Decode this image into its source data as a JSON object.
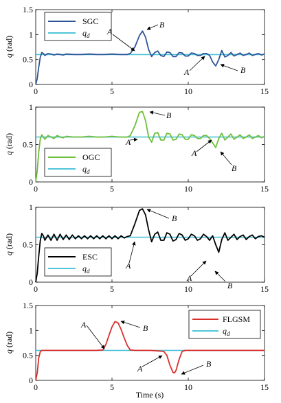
{
  "chart_data": [
    {
      "type": "line",
      "xlabel": "",
      "ylabel_main": "q",
      "ylabel_unit": "(rad)",
      "xlim": [
        0,
        15
      ],
      "ylim": [
        0,
        1.5
      ],
      "xticks": [
        "0",
        "5",
        "10",
        "15"
      ],
      "yticks": [
        "0",
        "0.5",
        "1",
        "1.5"
      ],
      "legend_position": "top-left",
      "series": [
        {
          "name": "SGC",
          "color": "#2f5597",
          "x": [
            0,
            0.1,
            0.2,
            0.3,
            0.4,
            0.5,
            0.6,
            0.7,
            0.8,
            1,
            1.2,
            1.4,
            1.6,
            1.8,
            2,
            2.5,
            3,
            3.5,
            4,
            4.5,
            5,
            5.5,
            6,
            6.2,
            6.5,
            6.8,
            7,
            7.2,
            7.4,
            7.6,
            7.8,
            8,
            8.2,
            8.4,
            8.6,
            8.8,
            9,
            9.2,
            9.4,
            9.6,
            9.8,
            10,
            10.2,
            10.4,
            10.6,
            10.8,
            11,
            11.2,
            11.4,
            11.6,
            11.8,
            12,
            12.2,
            12.4,
            12.6,
            12.8,
            13,
            13.2,
            13.4,
            13.6,
            13.8,
            14,
            14.2,
            14.4,
            14.6,
            14.8,
            15
          ],
          "y": [
            0,
            0.12,
            0.35,
            0.55,
            0.64,
            0.62,
            0.58,
            0.6,
            0.62,
            0.61,
            0.59,
            0.61,
            0.6,
            0.59,
            0.61,
            0.6,
            0.6,
            0.61,
            0.6,
            0.6,
            0.61,
            0.6,
            0.6,
            0.62,
            0.75,
            0.98,
            1.07,
            0.95,
            0.7,
            0.56,
            0.64,
            0.67,
            0.58,
            0.56,
            0.65,
            0.64,
            0.56,
            0.56,
            0.64,
            0.63,
            0.57,
            0.57,
            0.63,
            0.62,
            0.58,
            0.58,
            0.62,
            0.62,
            0.58,
            0.45,
            0.37,
            0.5,
            0.68,
            0.55,
            0.58,
            0.64,
            0.57,
            0.6,
            0.63,
            0.58,
            0.6,
            0.63,
            0.58,
            0.6,
            0.62,
            0.59,
            0.61
          ]
        },
        {
          "name": "q_d",
          "color": "#4fc4d9",
          "x": [
            0,
            15
          ],
          "y": [
            0.6,
            0.6
          ]
        }
      ],
      "legend": [
        {
          "label_main": "SGC",
          "label_sub": "",
          "color": "#2f5597"
        },
        {
          "label_main": "q",
          "label_sub": "d",
          "color": "#4fc4d9"
        }
      ],
      "annotations": [
        "A",
        "B",
        "A",
        "B"
      ]
    },
    {
      "type": "line",
      "xlabel": "",
      "ylabel_main": "q",
      "ylabel_unit": "(rad)",
      "xlim": [
        0,
        15
      ],
      "ylim": [
        0,
        1
      ],
      "xticks": [
        "0",
        "5",
        "10",
        "15"
      ],
      "yticks": [
        "0",
        "0.5",
        "1"
      ],
      "legend_position": "bottom-left",
      "series": [
        {
          "name": "OGC",
          "color": "#6dbf3b",
          "x": [
            0,
            0.1,
            0.2,
            0.3,
            0.4,
            0.5,
            0.6,
            0.8,
            1,
            1.2,
            1.4,
            1.6,
            1.8,
            2,
            2.5,
            3,
            3.5,
            4,
            4.5,
            5,
            5.5,
            6,
            6.2,
            6.5,
            6.8,
            7,
            7.2,
            7.4,
            7.6,
            7.8,
            8,
            8.2,
            8.4,
            8.6,
            8.8,
            9,
            9.2,
            9.4,
            9.6,
            9.8,
            10,
            10.2,
            10.4,
            10.6,
            10.8,
            11,
            11.2,
            11.4,
            11.6,
            11.8,
            12,
            12.2,
            12.4,
            12.6,
            12.8,
            13,
            13.2,
            13.4,
            13.6,
            13.8,
            14,
            14.2,
            14.4,
            14.6,
            14.8,
            15
          ],
          "y": [
            0,
            0.15,
            0.4,
            0.58,
            0.63,
            0.6,
            0.57,
            0.62,
            0.6,
            0.58,
            0.62,
            0.6,
            0.59,
            0.61,
            0.6,
            0.6,
            0.61,
            0.6,
            0.6,
            0.61,
            0.6,
            0.6,
            0.62,
            0.75,
            0.93,
            0.94,
            0.82,
            0.6,
            0.53,
            0.65,
            0.66,
            0.56,
            0.56,
            0.65,
            0.64,
            0.56,
            0.57,
            0.64,
            0.63,
            0.57,
            0.57,
            0.63,
            0.62,
            0.58,
            0.58,
            0.62,
            0.62,
            0.58,
            0.52,
            0.46,
            0.58,
            0.65,
            0.56,
            0.6,
            0.64,
            0.57,
            0.6,
            0.63,
            0.58,
            0.6,
            0.63,
            0.58,
            0.6,
            0.62,
            0.59,
            0.61
          ]
        },
        {
          "name": "q_d",
          "color": "#4fc4d9",
          "x": [
            0,
            15
          ],
          "y": [
            0.6,
            0.6
          ]
        }
      ],
      "legend": [
        {
          "label_main": "OGC",
          "label_sub": "",
          "color": "#6dbf3b"
        },
        {
          "label_main": "q",
          "label_sub": "d",
          "color": "#4fc4d9"
        }
      ],
      "annotations": [
        "A",
        "B",
        "A",
        "B"
      ]
    },
    {
      "type": "line",
      "xlabel": "",
      "ylabel_main": "q",
      "ylabel_unit": "(rad)",
      "xlim": [
        0,
        15
      ],
      "ylim": [
        0,
        1
      ],
      "xticks": [
        "0",
        "5",
        "10",
        "15"
      ],
      "yticks": [
        "0",
        "0.5",
        "1"
      ],
      "legend_position": "bottom-left",
      "series": [
        {
          "name": "ESC",
          "color": "#000000",
          "x": [
            0,
            0.1,
            0.2,
            0.3,
            0.4,
            0.5,
            0.6,
            0.8,
            1,
            1.2,
            1.4,
            1.6,
            1.8,
            2,
            2.2,
            2.4,
            2.6,
            2.8,
            3,
            3.2,
            3.4,
            3.6,
            3.8,
            4,
            4.2,
            4.4,
            4.6,
            4.8,
            5,
            5.2,
            5.4,
            5.6,
            5.8,
            6,
            6.2,
            6.5,
            6.8,
            7,
            7.2,
            7.4,
            7.6,
            7.8,
            8,
            8.2,
            8.4,
            8.6,
            8.8,
            9,
            9.2,
            9.4,
            9.6,
            9.8,
            10,
            10.2,
            10.4,
            10.6,
            10.8,
            11,
            11.2,
            11.4,
            11.6,
            11.8,
            12,
            12.2,
            12.4,
            12.6,
            12.8,
            13,
            13.2,
            13.4,
            13.6,
            13.8,
            14,
            14.2,
            14.4,
            14.6,
            14.8,
            15
          ],
          "y": [
            0,
            0.12,
            0.35,
            0.56,
            0.65,
            0.62,
            0.56,
            0.63,
            0.56,
            0.64,
            0.56,
            0.64,
            0.57,
            0.63,
            0.57,
            0.63,
            0.58,
            0.62,
            0.58,
            0.62,
            0.58,
            0.62,
            0.58,
            0.62,
            0.58,
            0.62,
            0.58,
            0.62,
            0.58,
            0.62,
            0.58,
            0.62,
            0.59,
            0.61,
            0.62,
            0.78,
            0.96,
            0.98,
            0.9,
            0.7,
            0.54,
            0.64,
            0.67,
            0.56,
            0.56,
            0.66,
            0.64,
            0.55,
            0.57,
            0.65,
            0.63,
            0.56,
            0.58,
            0.64,
            0.62,
            0.56,
            0.58,
            0.64,
            0.61,
            0.56,
            0.62,
            0.5,
            0.4,
            0.57,
            0.66,
            0.56,
            0.6,
            0.64,
            0.57,
            0.61,
            0.63,
            0.57,
            0.61,
            0.63,
            0.58,
            0.61,
            0.62,
            0.6
          ]
        },
        {
          "name": "q_d",
          "color": "#4fc4d9",
          "x": [
            0,
            15
          ],
          "y": [
            0.6,
            0.6
          ]
        }
      ],
      "legend": [
        {
          "label_main": "ESC",
          "label_sub": "",
          "color": "#000000"
        },
        {
          "label_main": "q",
          "label_sub": "d",
          "color": "#4fc4d9"
        }
      ],
      "annotations": [
        "A",
        "B",
        "A",
        "B"
      ]
    },
    {
      "type": "line",
      "xlabel": "Time (s)",
      "ylabel_main": "q",
      "ylabel_unit": "(rad)",
      "xlim": [
        0,
        15
      ],
      "ylim": [
        0,
        1.5
      ],
      "xticks": [
        "0",
        "5",
        "10",
        "15"
      ],
      "yticks": [
        "0",
        "0.5",
        "1",
        "1.5"
      ],
      "legend_position": "top-right",
      "series": [
        {
          "name": "FLGSM",
          "color": "#d9302c",
          "x": [
            0,
            0.1,
            0.2,
            0.3,
            0.4,
            0.5,
            0.6,
            0.8,
            1,
            2,
            3,
            4,
            4.4,
            4.6,
            4.8,
            5,
            5.2,
            5.4,
            5.6,
            5.8,
            6,
            6.2,
            6.5,
            7,
            7.5,
            8,
            8.4,
            8.6,
            8.8,
            9,
            9.1,
            9.2,
            9.4,
            9.6,
            9.8,
            10,
            11,
            12,
            13,
            14,
            15
          ],
          "y": [
            0,
            0.15,
            0.45,
            0.58,
            0.6,
            0.6,
            0.6,
            0.6,
            0.6,
            0.6,
            0.6,
            0.6,
            0.61,
            0.72,
            0.9,
            1.07,
            1.18,
            1.15,
            1.02,
            0.85,
            0.7,
            0.61,
            0.6,
            0.6,
            0.6,
            0.59,
            0.58,
            0.5,
            0.3,
            0.16,
            0.15,
            0.2,
            0.42,
            0.58,
            0.6,
            0.6,
            0.6,
            0.6,
            0.6,
            0.6,
            0.6
          ]
        },
        {
          "name": "q_d",
          "color": "#4fc4d9",
          "x": [
            0,
            15
          ],
          "y": [
            0.6,
            0.6
          ]
        }
      ],
      "legend": [
        {
          "label_main": "FLGSM",
          "label_sub": "",
          "color": "#d9302c"
        },
        {
          "label_main": "q",
          "label_sub": "d",
          "color": "#4fc4d9"
        }
      ],
      "annotations": [
        "A",
        "B",
        "A",
        "B"
      ]
    }
  ]
}
